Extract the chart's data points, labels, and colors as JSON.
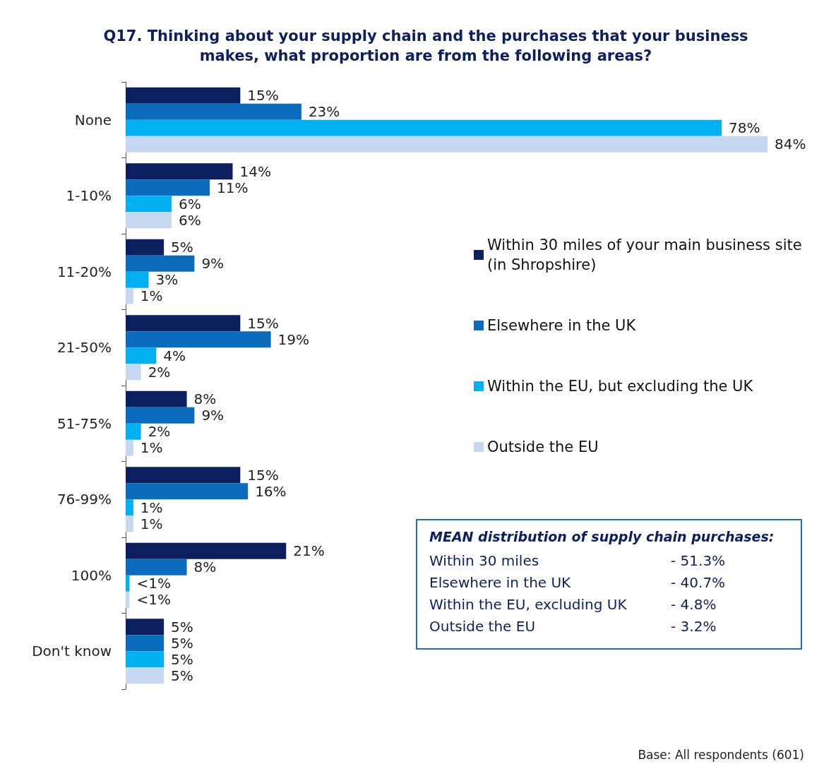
{
  "chart_data": {
    "type": "bar",
    "orientation": "horizontal",
    "title": "Q17. Thinking about your supply chain and the purchases that your business\nmakes, what proportion are from the following areas?",
    "categories": [
      "None",
      "1-10%",
      "11-20%",
      "21-50%",
      "51-75%",
      "76-99%",
      "100%",
      "Don't know"
    ],
    "series": [
      {
        "name": "Within 30 miles of your main business site (in Shropshire)",
        "color": "#0c1f5e",
        "values": [
          15,
          14,
          5,
          15,
          8,
          15,
          21,
          5
        ],
        "value_labels": [
          "15%",
          "14%",
          "5%",
          "15%",
          "8%",
          "15%",
          "21%",
          "5%"
        ]
      },
      {
        "name": "Elsewhere in the UK",
        "color": "#0b6bbd",
        "values": [
          23,
          11,
          9,
          19,
          9,
          16,
          8,
          5
        ],
        "value_labels": [
          "23%",
          "11%",
          "9%",
          "19%",
          "9%",
          "16%",
          "8%",
          "5%"
        ]
      },
      {
        "name": "Within the EU, but excluding the UK",
        "color": "#00b0f0",
        "values": [
          78,
          6,
          3,
          4,
          2,
          1,
          0.5,
          5
        ],
        "value_labels": [
          "78%",
          "6%",
          "3%",
          "4%",
          "2%",
          "1%",
          "<1%",
          "5%"
        ]
      },
      {
        "name": "Outside the EU",
        "color": "#c6d8ef",
        "values": [
          84,
          6,
          1,
          2,
          1,
          1,
          0.5,
          5
        ],
        "value_labels": [
          "84%",
          "6%",
          "1%",
          "2%",
          "1%",
          "1%",
          "<1%",
          "5%"
        ]
      }
    ],
    "legend": "right",
    "tick_labels": "y",
    "annotations": [
      "MEAN distribution of supply chain purchases:",
      "Within 30 miles",
      "- 51.3%",
      "Elsewhere in the UK",
      "- 40.7%",
      "Within the EU, excluding UK",
      "- 4.8%",
      "Outside the EU",
      "- 3.2%",
      "Base: All respondents (601)"
    ]
  }
}
